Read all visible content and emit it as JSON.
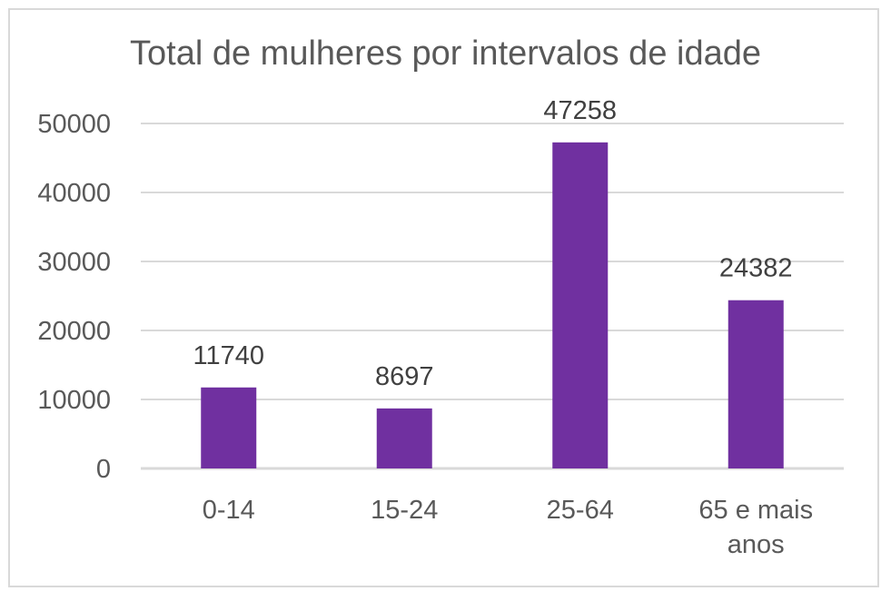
{
  "chart_data": {
    "type": "bar",
    "title": "Total de mulheres por intervalos de idade",
    "xlabel": "",
    "ylabel": "",
    "categories": [
      [
        "0-14"
      ],
      [
        "15-24"
      ],
      [
        "25-64"
      ],
      [
        "65 e mais",
        "anos"
      ]
    ],
    "values": [
      11740,
      8697,
      47258,
      24382
    ],
    "data_labels": [
      "11740",
      "8697",
      "47258",
      "24382"
    ],
    "y_ticks": [
      0,
      10000,
      20000,
      30000,
      40000,
      50000
    ],
    "y_tick_labels": [
      "0",
      "10000",
      "20000",
      "30000",
      "40000",
      "50000"
    ],
    "ylim": [
      0,
      50000
    ],
    "grid": true,
    "legend": "none",
    "bar_color": "#7030a0",
    "grid_color": "#d9d9d9"
  }
}
